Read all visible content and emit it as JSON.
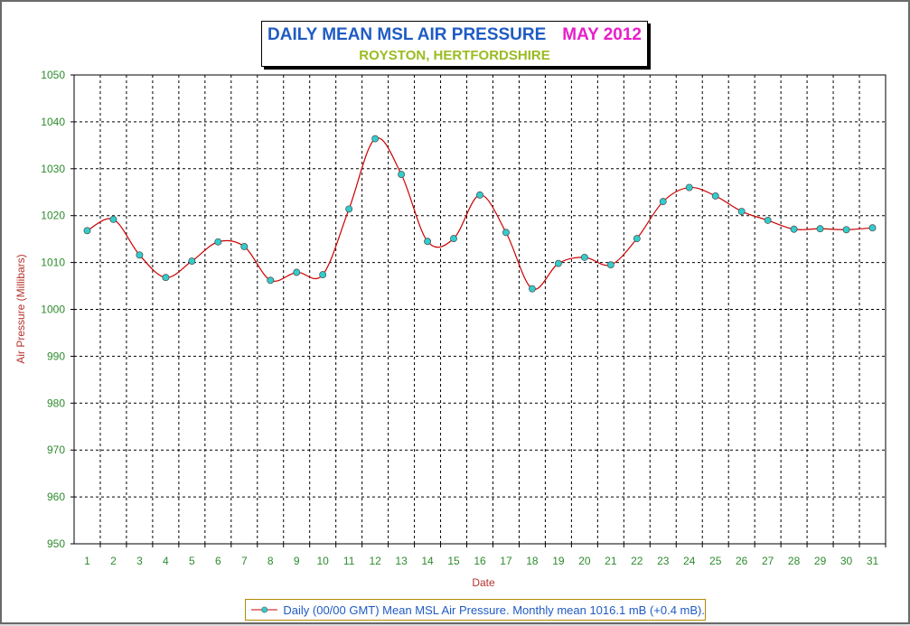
{
  "title": {
    "main": "DAILY MEAN MSL AIR PRESSURE",
    "month": "MAY 2012",
    "subtitle": "ROYSTON, HERTFORDSHIRE"
  },
  "legend": {
    "label": "Daily (00/00 GMT) Mean MSL Air Pressure. Monthly mean 1016.1 mB (+0.4 mB)."
  },
  "colors": {
    "line": "#cc0000",
    "marker_fill": "#33cccc",
    "grid": "#000000",
    "tick_text": "#2e8b2e",
    "axis_title": "#b5322e"
  },
  "chart_data": {
    "type": "line",
    "xlabel": "Date",
    "ylabel": "Air Pressure (Millibars)",
    "ylim": [
      950,
      1050
    ],
    "y_ticks": [
      950,
      960,
      970,
      980,
      990,
      1000,
      1010,
      1020,
      1030,
      1040,
      1050
    ],
    "grid": true,
    "legend_position": "bottom-center",
    "x": [
      1,
      2,
      3,
      4,
      5,
      6,
      7,
      8,
      9,
      10,
      11,
      12,
      13,
      14,
      15,
      16,
      17,
      18,
      19,
      20,
      21,
      22,
      23,
      24,
      25,
      26,
      27,
      28,
      29,
      30,
      31
    ],
    "series": [
      {
        "name": "Daily (00/00 GMT) Mean MSL Air Pressure. Monthly mean 1016.1 mB (+0.4 mB).",
        "values": [
          1016.8,
          1019.2,
          1011.6,
          1006.8,
          1010.3,
          1014.4,
          1013.4,
          1006.2,
          1007.9,
          1007.4,
          1021.4,
          1036.4,
          1028.8,
          1014.5,
          1015.1,
          1024.4,
          1016.4,
          1004.4,
          1009.8,
          1011.1,
          1009.5,
          1015.1,
          1023.0,
          1026.0,
          1024.2,
          1020.9,
          1019.0,
          1017.1,
          1017.2,
          1017.0,
          1017.4
        ]
      }
    ]
  }
}
